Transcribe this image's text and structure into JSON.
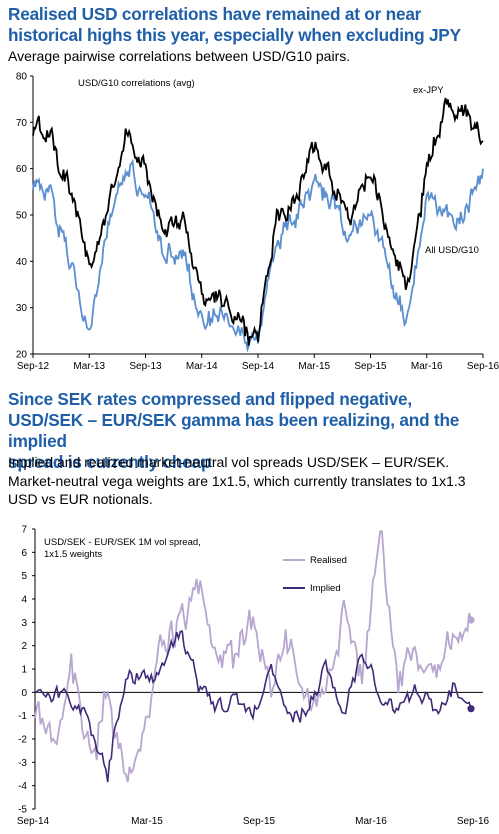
{
  "section1": {
    "headline_line1": "Realised USD correlations have remained at or near",
    "headline_line2": "historical highs this year, especially when excluding JPY",
    "subtitle": "Average pairwise correlations between USD/G10 pairs."
  },
  "section2": {
    "headline_line1": "Since SEK rates compressed and flipped negative,",
    "headline_line2": "USD/SEK – EUR/SEK gamma has been realizing, and the implied",
    "headline_line3": "spread is currently cheap",
    "subtitle_line1": "Implied and realized market-neutral vol spreads USD/SEK – EUR/SEK.",
    "subtitle_line2": "Market-neutral vega weights are 1x1.5, which currently translates to 1x1.3",
    "subtitle_line3": "USD vs EUR notionals."
  },
  "colors": {
    "headline": "#1f5fa8",
    "ex_jpy": "#000000",
    "all_usd_g10": "#5b8fd0",
    "realised": "#b7a6cf",
    "implied": "#3f2a78"
  },
  "chart_data": [
    {
      "type": "line",
      "title": "USD/G10 correlations (avg)",
      "x_ticks": [
        "Sep-12",
        "Mar-13",
        "Sep-13",
        "Mar-14",
        "Sep-14",
        "Mar-15",
        "Sep-15",
        "Mar-16",
        "Sep-16"
      ],
      "ylim": [
        20,
        80
      ],
      "y_ticks": [
        20,
        30,
        40,
        50,
        60,
        70,
        80
      ],
      "grid": false,
      "x": [
        "Sep-12",
        "Nov-12",
        "Jan-13",
        "Mar-13",
        "May-13",
        "Jul-13",
        "Sep-13",
        "Nov-13",
        "Jan-14",
        "Mar-14",
        "May-14",
        "Jul-14",
        "Sep-14",
        "Nov-14",
        "Jan-15",
        "Mar-15",
        "May-15",
        "Jul-15",
        "Sep-15",
        "Nov-15",
        "Jan-16",
        "Mar-16",
        "May-16",
        "Jul-16",
        "Sep-16"
      ],
      "series": [
        {
          "name": "ex-JPY",
          "values": [
            68,
            68,
            55,
            38,
            52,
            68,
            60,
            46,
            50,
            32,
            33,
            27,
            24,
            50,
            54,
            65,
            58,
            50,
            59,
            44,
            35,
            60,
            73,
            73,
            66
          ]
        },
        {
          "name": "All USD/G10",
          "values": [
            57,
            53,
            41,
            26,
            46,
            60,
            54,
            41,
            45,
            25,
            27,
            24,
            23,
            45,
            48,
            57,
            53,
            45,
            52,
            38,
            28,
            55,
            50,
            50,
            60
          ]
        }
      ]
    },
    {
      "type": "line",
      "title": "USD/SEK - EUR/SEK 1M vol spread,",
      "title_line2": "1x1.5 weights",
      "x_ticks": [
        "Sep-14",
        "Mar-15",
        "Sep-15",
        "Mar-16",
        "Sep-16"
      ],
      "ylim": [
        -5,
        7
      ],
      "y_ticks": [
        -5,
        -4,
        -3,
        -2,
        -1,
        0,
        1,
        2,
        3,
        4,
        5,
        6,
        7
      ],
      "grid": false,
      "x": [
        "Sep-14",
        "Oct-14",
        "Nov-14",
        "Dec-14",
        "Jan-15",
        "Feb-15",
        "Mar-15",
        "Apr-15",
        "May-15",
        "Jun-15",
        "Jul-15",
        "Aug-15",
        "Sep-15",
        "Oct-15",
        "Nov-15",
        "Dec-15",
        "Jan-16",
        "Feb-16",
        "Mar-16",
        "Apr-16",
        "May-16",
        "Jun-16",
        "Jul-16",
        "Aug-16",
        "Sep-16"
      ],
      "series": [
        {
          "name": "Realised",
          "values": [
            -1,
            -2.5,
            1.5,
            -3,
            0.5,
            -4,
            -2,
            2,
            3.5,
            4.5,
            2,
            1,
            3,
            0,
            2,
            0,
            0,
            4,
            0,
            6.8,
            1,
            2,
            1,
            2.5,
            3.1
          ]
        },
        {
          "name": "Implied",
          "values": [
            0,
            -0.2,
            -0.5,
            -1.5,
            -3.5,
            0.5,
            0.5,
            1,
            2.5,
            0.5,
            -0.5,
            -0.3,
            -1,
            1,
            -1,
            -1,
            0.8,
            -1,
            1.5,
            0,
            -1,
            0,
            -1,
            0.2,
            -0.7
          ]
        }
      ]
    }
  ]
}
